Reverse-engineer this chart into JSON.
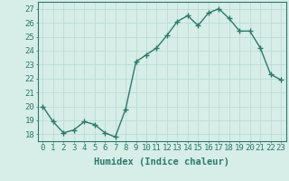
{
  "x": [
    0,
    1,
    2,
    3,
    4,
    5,
    6,
    7,
    8,
    9,
    10,
    11,
    12,
    13,
    14,
    15,
    16,
    17,
    18,
    19,
    20,
    21,
    22,
    23
  ],
  "y": [
    20.0,
    18.9,
    18.1,
    18.3,
    18.9,
    18.7,
    18.1,
    17.8,
    19.8,
    23.2,
    23.7,
    24.2,
    25.1,
    26.1,
    26.5,
    25.8,
    26.7,
    27.0,
    26.3,
    25.4,
    25.4,
    24.2,
    22.3,
    21.9
  ],
  "line_color": "#2d7a6a",
  "marker": "+",
  "marker_size": 4,
  "marker_linewidth": 1.0,
  "bg_color": "#d6ede8",
  "grid_color": "#b8d8d2",
  "xlabel": "Humidex (Indice chaleur)",
  "xlim": [
    -0.5,
    23.5
  ],
  "ylim": [
    17.5,
    27.5
  ],
  "yticks": [
    18,
    19,
    20,
    21,
    22,
    23,
    24,
    25,
    26,
    27
  ],
  "xticks": [
    0,
    1,
    2,
    3,
    4,
    5,
    6,
    7,
    8,
    9,
    10,
    11,
    12,
    13,
    14,
    15,
    16,
    17,
    18,
    19,
    20,
    21,
    22,
    23
  ],
  "tick_label_fontsize": 6.5,
  "xlabel_fontsize": 7.5,
  "tick_color": "#2d7a6a",
  "spine_color": "#2d7a6a",
  "line_width": 1.0
}
